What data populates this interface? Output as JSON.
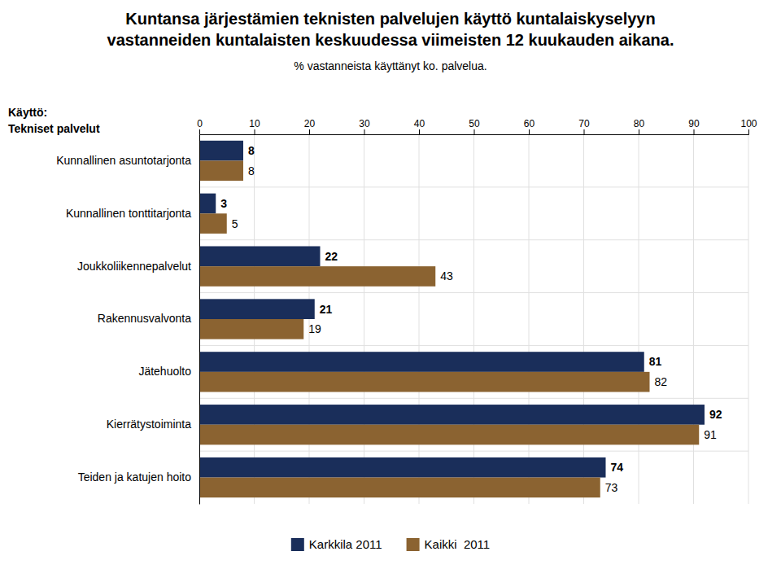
{
  "chart_data": {
    "type": "bar",
    "orientation": "horizontal",
    "title": [
      "Kuntansa järjestämien teknisten palvelujen käyttö kuntalaiskyselyyn",
      "vastanneiden kuntalaisten keskuudessa viimeisten 12 kuukauden aikana."
    ],
    "subtitle": "% vastanneista käyttänyt ko. palvelua.",
    "annotations": [
      "Käyttö:",
      "Tekniset palvelut"
    ],
    "categories": [
      "Kunnallinen asuntotarjonta",
      "Kunnallinen tonttitarjonta",
      "Joukkoliikennepalvelut",
      "Rakennusvalvonta",
      "Jätehuolto",
      "Kierrätystoiminta",
      "Teiden ja katujen hoito"
    ],
    "series": [
      {
        "name": "Karkkila 2011",
        "color": "#1a2e5a",
        "values": [
          8,
          3,
          22,
          21,
          81,
          92,
          74
        ]
      },
      {
        "name": "Kaikki  2011",
        "color": "#8b6331",
        "values": [
          8,
          5,
          43,
          19,
          82,
          91,
          73
        ]
      }
    ],
    "xlim": [
      0,
      100
    ],
    "xticks": [
      0,
      10,
      20,
      30,
      40,
      50,
      60,
      70,
      80,
      90,
      100
    ],
    "grid": true,
    "data_labels": true,
    "legend": "bottom"
  }
}
